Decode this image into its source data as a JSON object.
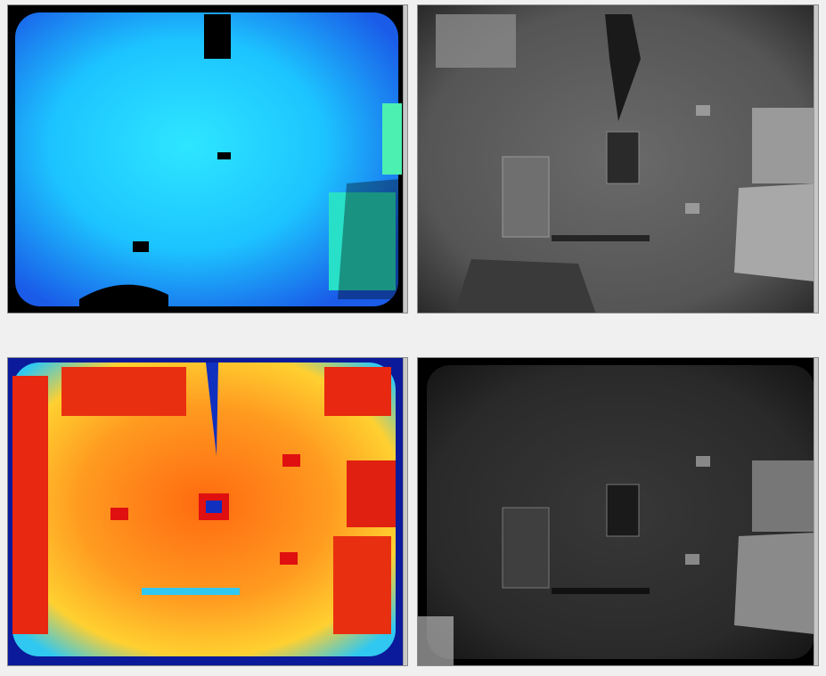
{
  "window": {
    "background": "#f0f0f0"
  },
  "views": [
    {
      "id": "depth-jet",
      "kind": "depth colormap",
      "colormap": "jet-blue"
    },
    {
      "id": "ir-gray",
      "kind": "infrared grayscale",
      "colormap": "gray"
    },
    {
      "id": "amplitude-jet",
      "kind": "amplitude colormap",
      "colormap": "jet-red"
    },
    {
      "id": "gray-dark",
      "kind": "dark grayscale",
      "colormap": "gray"
    }
  ],
  "colors": {
    "depth_center": "#1ed8ff",
    "depth_edge": "#1a6cf0",
    "ir_floor": "#585858",
    "heat_center": "#ff7a10",
    "heat_edge": "#0a1a9a",
    "dark_floor": "#303030"
  }
}
